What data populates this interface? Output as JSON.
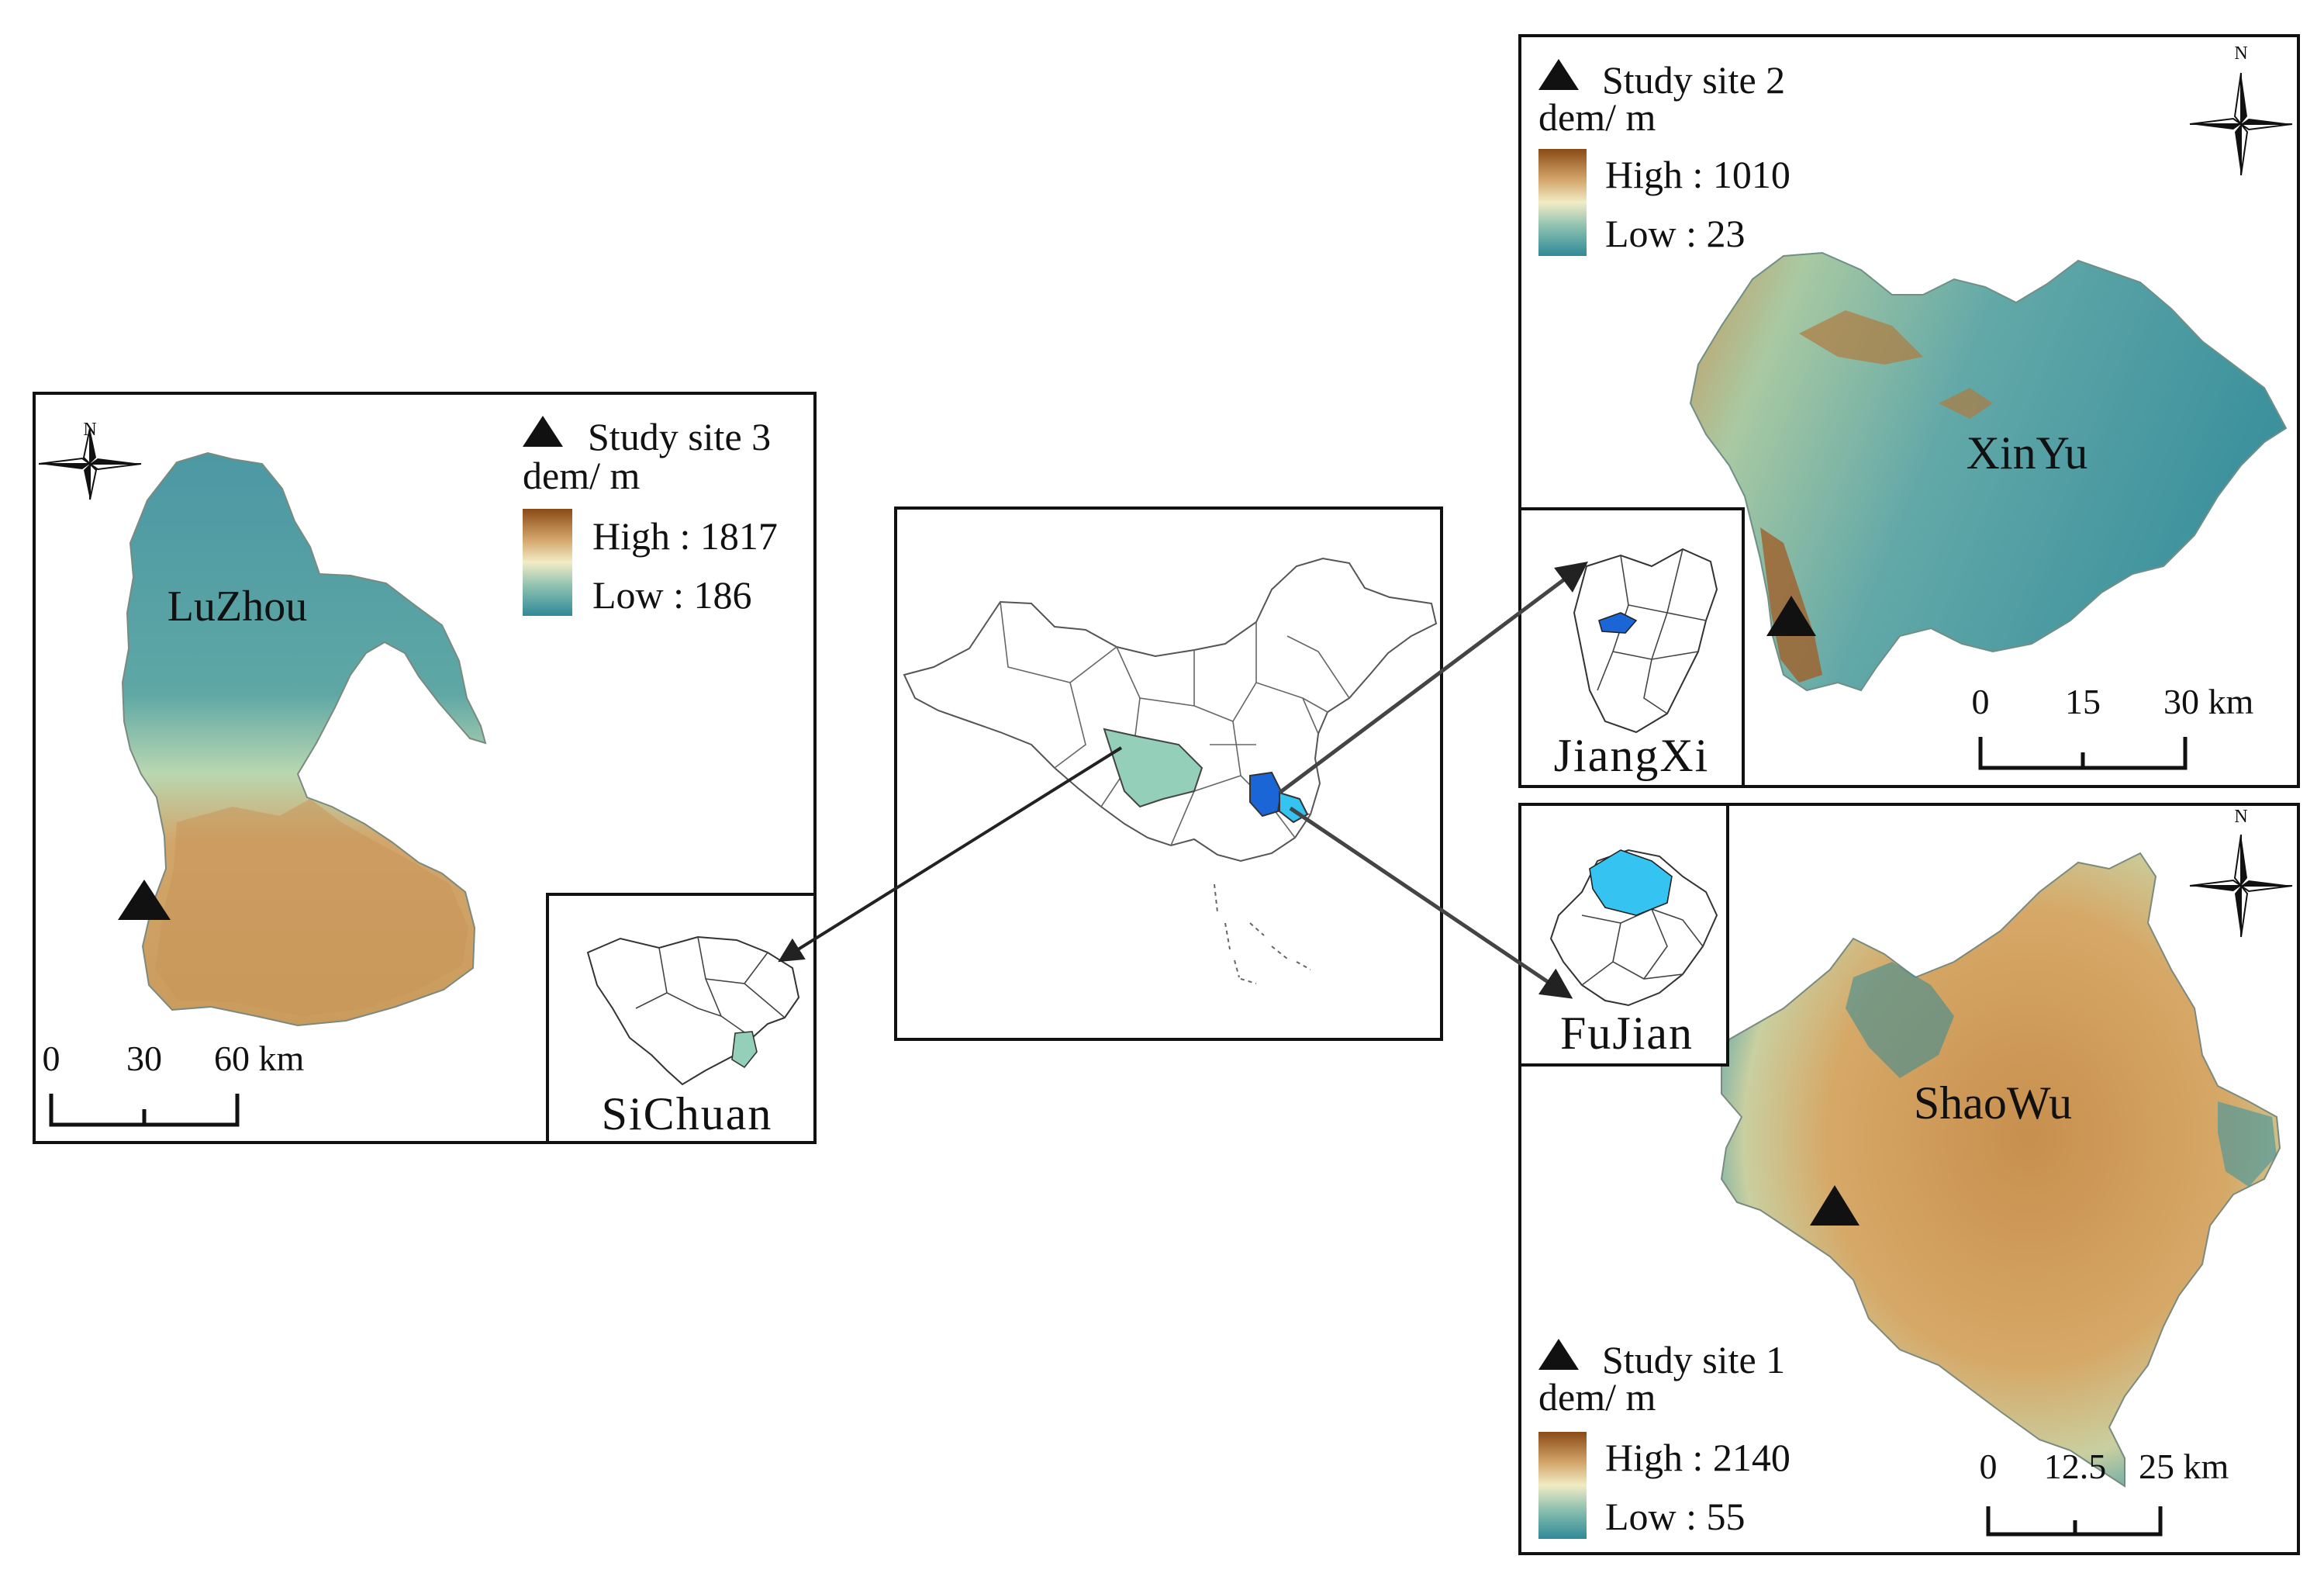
{
  "panels": {
    "luzhou": {
      "legend_title": "Study site 3",
      "dem_label": "dem/ m",
      "high_label": "High : 1817",
      "low_label": "Low : 186",
      "city_label": "LuZhou",
      "north": "N",
      "scale_ticks": [
        "0",
        "30",
        "60 km"
      ],
      "inset_label": "SiChuan"
    },
    "xinyu": {
      "legend_title": "Study site 2",
      "dem_label": "dem/ m",
      "high_label": "High : 1010",
      "low_label": "Low : 23",
      "city_label": "XinYu",
      "north": "N",
      "scale_ticks": [
        "0",
        "15",
        "30 km"
      ],
      "inset_label": "JiangXi"
    },
    "shaowu": {
      "legend_title": "Study site 1",
      "dem_label": "dem/ m",
      "high_label": "High : 2140",
      "low_label": "Low : 55",
      "city_label": "ShaoWu",
      "north": "N",
      "scale_ticks": [
        "0",
        "12.5",
        "25 km"
      ],
      "inset_label": "FuJian"
    }
  },
  "colors": {
    "dem_high": "#8a4a16",
    "dem_mid_high": "#d2a36a",
    "dem_mid": "#f1ecc4",
    "dem_mid_low": "#8fc1b0",
    "dem_low": "#2f8a98",
    "sichuan_fill": "#93cfb9",
    "jiangxi_fill": "#1b66d6",
    "fujian_fill": "#35c4f2",
    "frame": "#111111"
  },
  "icons": [
    "triangle-marker-icon",
    "north-arrow-icon"
  ]
}
